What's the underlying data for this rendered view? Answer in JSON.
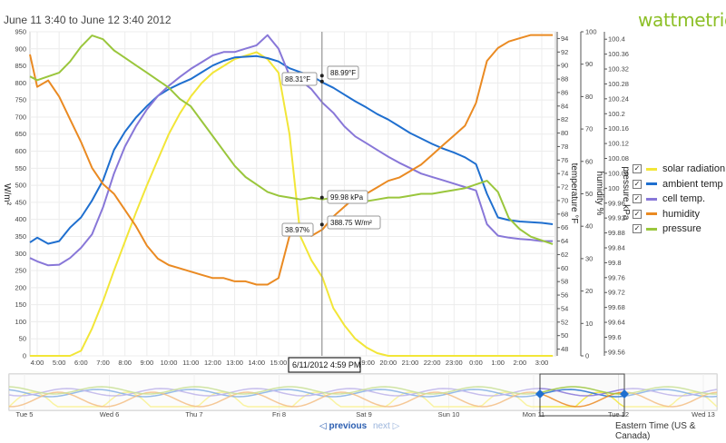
{
  "header": {
    "title": "June 11 3:40 to June 12 3:40 2012",
    "brand": "wattmetrics"
  },
  "legend": [
    {
      "label": "solar radiation",
      "color": "#f2e638",
      "checked": true
    },
    {
      "label": "ambient temp",
      "color": "#1f6fcf",
      "checked": true
    },
    {
      "label": "cell temp.",
      "color": "#8877d8",
      "checked": true
    },
    {
      "label": "humidity",
      "color": "#ea8a22",
      "checked": true
    },
    {
      "label": "pressure",
      "color": "#9ac63c",
      "checked": true
    }
  ],
  "check_mark": "✓",
  "nav": {
    "prev": "◁ previous",
    "next": "next ▷"
  },
  "timezone": "Eastern Time (US & Canada)",
  "tooltips": {
    "date": "6/11/2012 4:59 PM",
    "ambient": "88.99°F",
    "cell": "88.31°F",
    "pressure": "99.98 kPa",
    "solar": "388.75 W/m²",
    "humidity": "38.97%"
  },
  "chart_data": {
    "type": "line",
    "x_ticks": [
      "4:00",
      "5:00",
      "6:00",
      "7:00",
      "8:00",
      "9:00",
      "10:00",
      "11:00",
      "12:00",
      "13:00",
      "14:00",
      "15:00",
      "16:00",
      "17:00",
      "18:00",
      "19:00",
      "20:00",
      "21:00",
      "22:00",
      "23:00",
      "0:00",
      "1:00",
      "2:00",
      "3:00"
    ],
    "x": [
      3.67,
      4.0,
      4.5,
      5.0,
      5.5,
      6.0,
      6.5,
      7.0,
      7.5,
      8.0,
      8.5,
      9.0,
      9.5,
      10.0,
      10.5,
      11.0,
      11.5,
      12.0,
      12.5,
      13.0,
      13.5,
      14.0,
      14.5,
      15.0,
      15.5,
      16.0,
      16.5,
      17.0,
      17.5,
      18.0,
      18.5,
      19.0,
      19.5,
      20.0,
      20.5,
      21.0,
      21.5,
      22.0,
      22.5,
      23.0,
      23.5,
      24.0,
      24.5,
      25.0,
      25.5,
      26.0,
      26.5,
      27.0,
      27.5
    ],
    "axes": [
      {
        "title": "W/m²",
        "ticks": [
          "0",
          "50",
          "100",
          "150",
          "200",
          "250",
          "300",
          "350",
          "400",
          "450",
          "500",
          "550",
          "600",
          "650",
          "700",
          "750",
          "800",
          "850",
          "900",
          "950"
        ],
        "range": [
          0,
          950
        ]
      },
      {
        "title": "temperature °F",
        "ticks": [
          "48",
          "50",
          "52",
          "54",
          "56",
          "58",
          "60",
          "62",
          "64",
          "66",
          "68",
          "70",
          "72",
          "74",
          "76",
          "78",
          "80",
          "82",
          "84",
          "86",
          "88",
          "90",
          "92",
          "94"
        ],
        "range": [
          47,
          95
        ]
      },
      {
        "title": "humidity %",
        "ticks": [
          "0",
          "10",
          "20",
          "30",
          "40",
          "50",
          "60",
          "70",
          "80",
          "90",
          "100"
        ],
        "range": [
          0,
          100
        ]
      },
      {
        "title": "pressure kPa",
        "ticks": [
          "99.56",
          "99.6",
          "99.64",
          "99.68",
          "99.72",
          "99.76",
          "99.8",
          "99.84",
          "99.88",
          "99.92",
          "99.96",
          "100",
          "100.04",
          "100.08",
          "100.12",
          "100.16",
          "100.2",
          "100.24",
          "100.28",
          "100.32",
          "100.36",
          "100.4"
        ],
        "range": [
          99.55,
          100.42
        ]
      }
    ],
    "series": [
      {
        "name": "solar radiation",
        "axis": 0,
        "color": "#f2e638",
        "values": [
          0,
          0,
          0,
          0,
          0,
          15,
          80,
          160,
          250,
          335,
          420,
          500,
          575,
          650,
          710,
          760,
          800,
          830,
          850,
          870,
          880,
          890,
          870,
          830,
          650,
          350,
          280,
          230,
          140,
          90,
          50,
          25,
          8,
          0,
          0,
          0,
          0,
          0,
          0,
          0,
          0,
          0,
          0,
          0,
          0,
          0,
          0,
          0,
          0
        ]
      },
      {
        "name": "ambient temp",
        "axis": 1,
        "color": "#1f6fcf",
        "values": [
          63.8,
          64.5,
          63.6,
          64.0,
          66.0,
          67.5,
          70.0,
          73.0,
          77.5,
          80.2,
          82.3,
          84.0,
          85.5,
          86.5,
          87.3,
          88.0,
          89.0,
          90.0,
          90.7,
          91.2,
          91.3,
          91.4,
          91.1,
          90.6,
          89.6,
          89.0,
          88.5,
          87.5,
          86.7,
          85.7,
          84.7,
          83.8,
          82.8,
          82.0,
          81.0,
          80.0,
          79.2,
          78.4,
          77.7,
          77.1,
          76.4,
          75.4,
          71.0,
          67.5,
          67.1,
          66.9,
          66.8,
          66.7,
          66.5
        ]
      },
      {
        "name": "cell temp.",
        "axis": 1,
        "color": "#8877d8",
        "values": [
          61.5,
          61.0,
          60.4,
          60.5,
          61.5,
          63.0,
          65.0,
          69.0,
          74.0,
          78.0,
          81.0,
          83.5,
          85.5,
          87.0,
          88.3,
          89.5,
          90.5,
          91.5,
          92.0,
          92.0,
          92.5,
          93.0,
          94.5,
          92.5,
          88.5,
          87.8,
          86.5,
          84.5,
          83.0,
          81.0,
          79.5,
          78.5,
          77.5,
          76.5,
          75.6,
          74.8,
          74.0,
          73.5,
          73.0,
          72.5,
          72.0,
          71.5,
          66.5,
          64.8,
          64.5,
          64.3,
          64.2,
          64.0,
          64.0
        ]
      },
      {
        "name": "humidity",
        "axis": 2,
        "color": "#ea8a22",
        "values": [
          93,
          83,
          85,
          80,
          73,
          66,
          58,
          53,
          50,
          45,
          40,
          34,
          30,
          28,
          27,
          26,
          25,
          24,
          24,
          23,
          23,
          22,
          22,
          24,
          37,
          38,
          37,
          39,
          43,
          46,
          49,
          50,
          52,
          54,
          55,
          57,
          59,
          62,
          65,
          68,
          71,
          78,
          91,
          95,
          97,
          98,
          99,
          99,
          99
        ]
      },
      {
        "name": "pressure",
        "axis": 3,
        "color": "#9ac63c",
        "values": [
          100.3,
          100.29,
          100.3,
          100.31,
          100.34,
          100.38,
          100.41,
          100.4,
          100.37,
          100.35,
          100.33,
          100.31,
          100.29,
          100.27,
          100.24,
          100.22,
          100.18,
          100.14,
          100.1,
          100.06,
          100.03,
          100.01,
          99.99,
          99.98,
          99.975,
          99.97,
          99.975,
          99.97,
          99.975,
          99.975,
          99.97,
          99.965,
          99.97,
          99.975,
          99.975,
          99.98,
          99.985,
          99.985,
          99.99,
          99.995,
          100.0,
          100.01,
          100.02,
          99.99,
          99.92,
          99.89,
          99.87,
          99.86,
          99.85
        ]
      }
    ],
    "crosshair_x": 16.98,
    "navigator": {
      "labels": [
        "Tue 5",
        "Wed 6",
        "Thu 7",
        "Fri 8",
        "Sat 9",
        "Sun 10",
        "Mon 11",
        "Tue 12",
        "Wed 13"
      ]
    },
    "grid": true,
    "legend_position": "right"
  }
}
